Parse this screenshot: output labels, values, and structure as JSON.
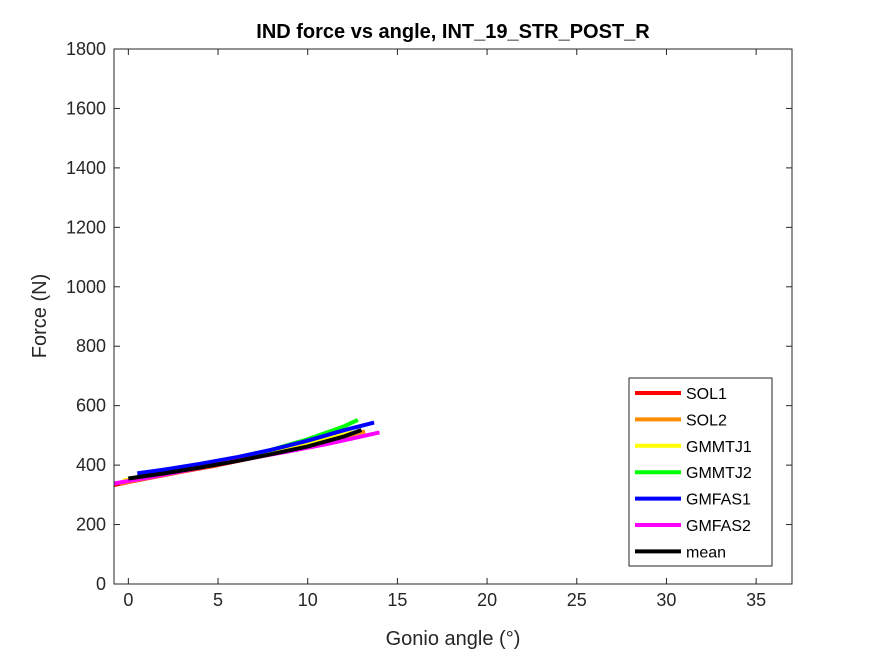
{
  "chart_data": {
    "type": "line",
    "title": "IND force vs angle, INT_19_STR_POST_R",
    "xlabel": "Gonio angle (°)",
    "ylabel": "Force (N)",
    "xlim": [
      -0.8,
      37
    ],
    "ylim": [
      0,
      1800
    ],
    "xticks": [
      0,
      5,
      10,
      15,
      20,
      25,
      30,
      35
    ],
    "yticks": [
      0,
      200,
      400,
      600,
      800,
      1000,
      1200,
      1400,
      1600,
      1800
    ],
    "grid": false,
    "legend_position": "bottom-right",
    "series": [
      {
        "name": "SOL1",
        "color": "#ff0000",
        "x": [
          -0.8,
          1,
          3,
          5,
          7,
          9,
          11,
          12.8
        ],
        "y": [
          333,
          355,
          378,
          400,
          425,
          450,
          478,
          508
        ]
      },
      {
        "name": "SOL2",
        "color": "#ff8c00",
        "x": [
          -0.5,
          1,
          3,
          5,
          7,
          9,
          11,
          13.2
        ],
        "y": [
          338,
          356,
          379,
          402,
          428,
          455,
          482,
          513
        ]
      },
      {
        "name": "GMMTJ1",
        "color": "#ffff00",
        "x": [
          -0.3,
          1,
          3,
          5,
          7,
          9,
          11,
          12.5
        ],
        "y": [
          348,
          362,
          384,
          407,
          432,
          460,
          488,
          510
        ]
      },
      {
        "name": "GMMTJ2",
        "color": "#00ff00",
        "x": [
          0.5,
          2,
          4,
          6,
          8,
          10,
          12,
          12.8
        ],
        "y": [
          362,
          380,
          401,
          424,
          452,
          487,
          530,
          552
        ]
      },
      {
        "name": "GMFAS1",
        "color": "#0000ff",
        "x": [
          0.5,
          2,
          4,
          6,
          8,
          10,
          12,
          13.7
        ],
        "y": [
          372,
          385,
          404,
          426,
          452,
          482,
          517,
          543
        ]
      },
      {
        "name": "GMFAS2",
        "color": "#ff00ff",
        "x": [
          -0.8,
          1,
          3,
          5,
          7,
          9,
          11,
          12.5,
          14.0
        ],
        "y": [
          338,
          357,
          380,
          403,
          425,
          447,
          470,
          490,
          510
        ]
      },
      {
        "name": "mean",
        "color": "#000000",
        "x": [
          0,
          2,
          4,
          6,
          8,
          10,
          12,
          13
        ],
        "y": [
          355,
          372,
          392,
          413,
          437,
          463,
          496,
          518
        ]
      }
    ]
  }
}
